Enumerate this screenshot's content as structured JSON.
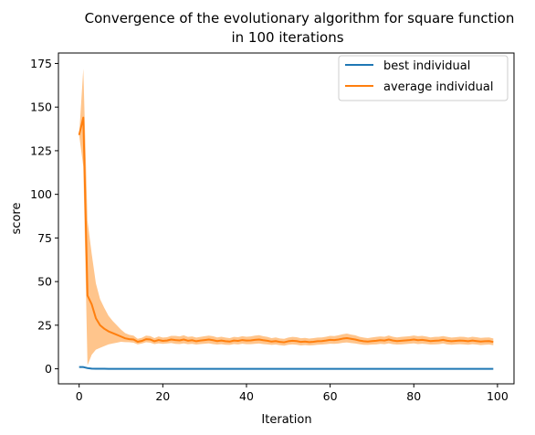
{
  "chart_data": {
    "type": "line",
    "title": "Convergence of the evolutionary algorithm for square function",
    "subtitle": "in 100 iterations",
    "xlabel": "Iteration",
    "ylabel": "score",
    "xlim": [
      -4.95,
      103.95
    ],
    "ylim": [
      -8.6,
      181.0
    ],
    "xticks": [
      0,
      20,
      40,
      60,
      80,
      100
    ],
    "yticks": [
      0,
      25,
      50,
      75,
      100,
      125,
      150,
      175
    ],
    "grid": false,
    "legend_position": "top-right",
    "x": [
      0,
      1,
      2,
      3,
      4,
      5,
      6,
      7,
      8,
      9,
      10,
      11,
      12,
      13,
      14,
      15,
      16,
      17,
      18,
      19,
      20,
      21,
      22,
      23,
      24,
      25,
      26,
      27,
      28,
      29,
      30,
      31,
      32,
      33,
      34,
      35,
      36,
      37,
      38,
      39,
      40,
      41,
      42,
      43,
      44,
      45,
      46,
      47,
      48,
      49,
      50,
      51,
      52,
      53,
      54,
      55,
      56,
      57,
      58,
      59,
      60,
      61,
      62,
      63,
      64,
      65,
      66,
      67,
      68,
      69,
      70,
      71,
      72,
      73,
      74,
      75,
      76,
      77,
      78,
      79,
      80,
      81,
      82,
      83,
      84,
      85,
      86,
      87,
      88,
      89,
      90,
      91,
      92,
      93,
      94,
      95,
      96,
      97,
      98,
      99
    ],
    "series": [
      {
        "name": "best individual",
        "color": "#1f77b4",
        "values": [
          1.0,
          1.0,
          0.4,
          0.1,
          0.05,
          0.02,
          0.01,
          0,
          0,
          0,
          0,
          0,
          0,
          0,
          0,
          0,
          0,
          0,
          0,
          0,
          0,
          0,
          0,
          0,
          0,
          0,
          0,
          0,
          0,
          0,
          0,
          0,
          0,
          0,
          0,
          0,
          0,
          0,
          0,
          0,
          0,
          0,
          0,
          0,
          0,
          0,
          0,
          0,
          0,
          0,
          0,
          0,
          0,
          0,
          0,
          0,
          0,
          0,
          0,
          0,
          0,
          0,
          0,
          0,
          0,
          0,
          0,
          0,
          0,
          0,
          0,
          0,
          0,
          0,
          0,
          0,
          0,
          0,
          0,
          0,
          0,
          0,
          0,
          0,
          0,
          0,
          0,
          0,
          0,
          0,
          0,
          0,
          0,
          0,
          0,
          0,
          0,
          0,
          0,
          0
        ]
      },
      {
        "name": "average individual",
        "color": "#ff7f0e",
        "band_color": "#ffbb78",
        "values": [
          134,
          144,
          42,
          37,
          29,
          25,
          23,
          21.5,
          20.5,
          19.5,
          18.5,
          17.5,
          17,
          16.8,
          15.5,
          16,
          17,
          16.8,
          15.8,
          16.5,
          16,
          16.2,
          16.8,
          16.5,
          16.3,
          16.8,
          16.1,
          16.4,
          15.8,
          16.2,
          16.5,
          16.8,
          16.4,
          15.9,
          16.2,
          15.8,
          15.6,
          16.2,
          16,
          16.5,
          16.2,
          16.3,
          16.6,
          16.8,
          16.4,
          16.1,
          15.6,
          15.9,
          15.4,
          15.2,
          15.8,
          16.1,
          15.9,
          15.4,
          15.6,
          15.3,
          15.5,
          15.8,
          15.9,
          16.2,
          16.6,
          16.5,
          16.8,
          17.3,
          17.6,
          17.2,
          16.8,
          16.2,
          15.8,
          15.6,
          15.9,
          16.1,
          16.4,
          16.2,
          16.8,
          16.2,
          15.9,
          16.1,
          16.3,
          16.5,
          16.8,
          16.4,
          16.6,
          16.3,
          15.9,
          16.1,
          16.2,
          16.6,
          16.1,
          15.8,
          16,
          16.2,
          16.1,
          15.8,
          16.2,
          15.9,
          15.6,
          15.8,
          15.9,
          15.4
        ],
        "lower": [
          134,
          116,
          2,
          8,
          11,
          12,
          13,
          14,
          14.5,
          15,
          15.5,
          15.3,
          15.2,
          15,
          14,
          14.5,
          15.2,
          15,
          14.2,
          14.6,
          14.3,
          14.5,
          14.8,
          14.3,
          14.2,
          14.6,
          14.1,
          14.3,
          13.9,
          14.2,
          14.4,
          14.6,
          14.2,
          13.9,
          14.1,
          13.8,
          13.7,
          14.2,
          14,
          14.4,
          14.1,
          14.1,
          14.3,
          14.5,
          14.2,
          14,
          13.7,
          13.9,
          13.5,
          13.3,
          13.8,
          14,
          13.8,
          13.4,
          13.6,
          13.4,
          13.5,
          13.8,
          13.9,
          14.1,
          14.4,
          14.3,
          14.5,
          14.9,
          15.1,
          14.8,
          14.5,
          14.1,
          13.8,
          13.7,
          13.9,
          14,
          14.3,
          14.1,
          14.6,
          14.1,
          13.9,
          14,
          14.2,
          14.4,
          14.6,
          14.2,
          14.4,
          14.2,
          13.9,
          14,
          14.1,
          14.5,
          14,
          13.8,
          14,
          14.1,
          14,
          13.8,
          14.1,
          13.9,
          13.6,
          13.8,
          13.9,
          13.5
        ],
        "upper": [
          134,
          172,
          85,
          66,
          49,
          40,
          35,
          30.5,
          27.5,
          25,
          22.5,
          20.5,
          19.5,
          19,
          17.2,
          17.8,
          19,
          18.8,
          17.6,
          18.6,
          17.9,
          18.1,
          18.9,
          18.9,
          18.6,
          19.2,
          18.3,
          18.6,
          17.9,
          18.3,
          18.7,
          19,
          18.7,
          18,
          18.4,
          17.9,
          17.6,
          18.3,
          18.1,
          18.7,
          18.4,
          18.6,
          19,
          19.3,
          18.7,
          18.3,
          17.6,
          18,
          17.4,
          17.2,
          17.9,
          18.3,
          18.1,
          17.5,
          17.7,
          17.3,
          17.6,
          17.9,
          18,
          18.4,
          18.9,
          18.8,
          19.2,
          19.8,
          20.2,
          19.6,
          19.2,
          18.4,
          17.9,
          17.6,
          18,
          18.3,
          18.6,
          18.4,
          19.1,
          18.4,
          18,
          18.3,
          18.5,
          18.7,
          19.1,
          18.7,
          18.9,
          18.5,
          18,
          18.3,
          18.4,
          18.8,
          18.3,
          17.9,
          18.1,
          18.4,
          18.3,
          17.9,
          18.4,
          18.1,
          17.7,
          17.9,
          18,
          17.4
        ]
      }
    ]
  }
}
